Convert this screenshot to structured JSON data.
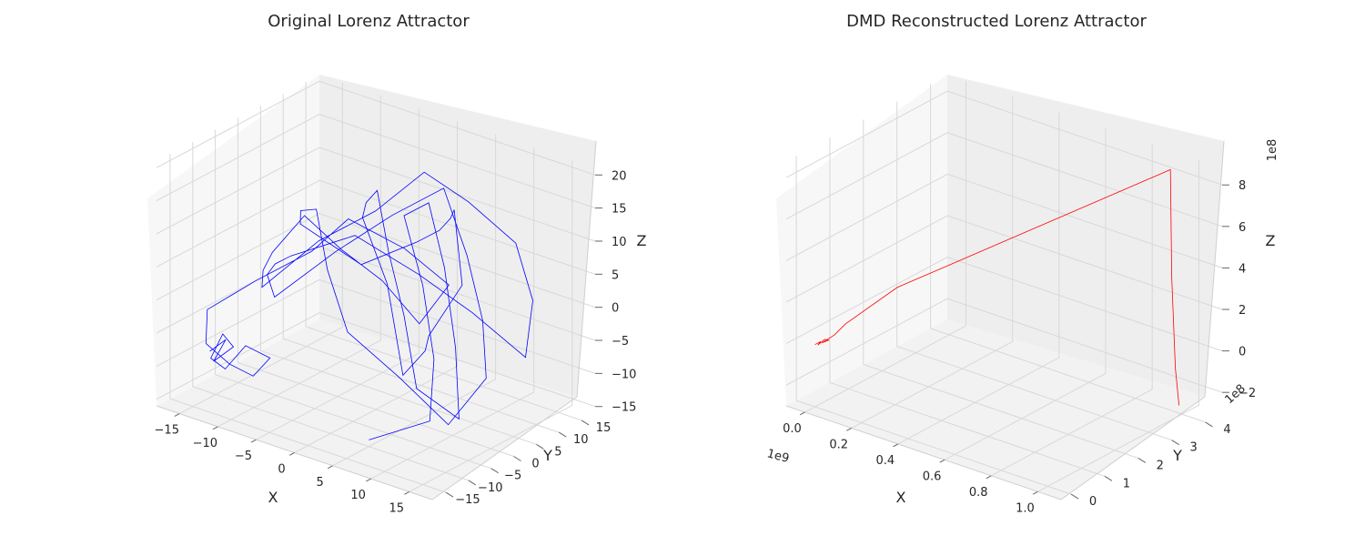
{
  "chart_data": [
    {
      "type": "line3d",
      "title": "Original Lorenz Attractor",
      "xlabel": "X",
      "ylabel": "Y",
      "zlabel": "Z",
      "xlim": [
        -18,
        18
      ],
      "ylim": [
        -18,
        18
      ],
      "zlim": [
        -16,
        21
      ],
      "xticks": [
        -15,
        -10,
        -5,
        0,
        5,
        10,
        15
      ],
      "yticks": [
        -15,
        -10,
        -5,
        0,
        5,
        10,
        15
      ],
      "zticks": [
        -15,
        -10,
        -5,
        0,
        5,
        10,
        15,
        20
      ],
      "x_offset_text": "",
      "y_offset_text": "",
      "z_offset_text": "",
      "color": "#0000ff",
      "series": [
        {
          "x": [
            -14.0,
            -12.5,
            -13.2,
            -11.8,
            -12.6,
            -13.4,
            -12.1,
            -10.5,
            -8.2,
            -9.8,
            -12.0,
            -14.5,
            -15.5,
            -11.0,
            -6.0,
            -3.0,
            2.0,
            6.0,
            4.5,
            2.0,
            -1.0,
            -4.0,
            -7.0,
            -10.0,
            -12.5,
            -8.0,
            -3.0,
            1.0,
            5.0,
            10.0,
            14.0,
            16.0,
            12.0,
            8.0,
            2.0,
            -4.0,
            -9.0,
            -13.0,
            -15.0,
            -10.0,
            -5.0,
            0.0,
            6.0,
            11.0,
            15.0,
            13.0,
            9.0,
            4.0,
            -1.0,
            -6.0,
            -11.0,
            -14.0,
            -9.0,
            -3.0,
            3.0,
            8.0,
            12.0,
            16.0,
            14.0,
            10.0,
            5.0,
            0.0,
            -5.0,
            -10.0,
            -6.0,
            -1.0,
            4.0,
            9.0,
            13.0,
            15.0,
            11.0,
            6.0,
            1.0,
            -4.0,
            2.0,
            7.0,
            10.0,
            5.0
          ],
          "y": [
            -13.0,
            -12.0,
            -13.5,
            -11.5,
            -12.5,
            -13.8,
            -12.8,
            -11.0,
            -9.5,
            -10.5,
            -12.0,
            -13.0,
            -11.0,
            -8.0,
            -4.0,
            -1.0,
            3.0,
            6.0,
            2.0,
            -2.0,
            -6.0,
            -9.0,
            -11.0,
            -8.0,
            -4.0,
            1.0,
            5.0,
            9.0,
            12.0,
            14.0,
            11.0,
            6.0,
            1.0,
            -4.0,
            -8.0,
            -12.0,
            -7.0,
            -2.0,
            3.0,
            8.0,
            12.0,
            15.0,
            10.0,
            5.0,
            -1.0,
            -6.0,
            -10.0,
            -13.0,
            -9.0,
            -3.0,
            2.0,
            7.0,
            12.0,
            14.0,
            9.0,
            3.0,
            -3.0,
            -8.0,
            -12.0,
            -6.0,
            0.0,
            6.0,
            11.0,
            14.0,
            8.0,
            2.0,
            -4.0,
            -9.0,
            -13.0,
            -7.0,
            -1.0,
            5.0,
            10.0,
            13.0,
            7.0,
            1.0,
            -5.0,
            -10.0
          ],
          "z": [
            -8.0,
            -6.0,
            -9.0,
            -7.0,
            -5.0,
            -8.5,
            -10.0,
            -6.5,
            -8.0,
            -11.0,
            -9.5,
            -7.0,
            -3.0,
            2.0,
            7.0,
            12.0,
            8.0,
            3.0,
            -2.0,
            5.0,
            10.0,
            15.0,
            9.0,
            4.0,
            -1.0,
            6.0,
            11.0,
            17.0,
            13.0,
            8.0,
            2.0,
            -4.0,
            3.0,
            9.0,
            14.0,
            10.0,
            5.0,
            0.0,
            -6.0,
            1.0,
            7.0,
            12.0,
            6.0,
            0.0,
            -5.0,
            -11.0,
            -4.0,
            2.0,
            8.0,
            13.0,
            9.0,
            4.0,
            -2.0,
            3.0,
            9.0,
            15.0,
            20.0,
            12.0,
            5.0,
            -1.0,
            -7.0,
            -13.0,
            -3.0,
            4.0,
            10.0,
            16.0,
            11.0,
            5.0,
            -3.0,
            -9.0,
            -2.0,
            6.0,
            12.0,
            7.0,
            1.0,
            -6.0,
            -12.0,
            -15.0
          ]
        }
      ]
    },
    {
      "type": "line3d",
      "title": "DMD Reconstructed Lorenz Attractor",
      "xlabel": "X",
      "ylabel": "Y",
      "zlabel": "Z",
      "xlim": [
        -0.08,
        1.1
      ],
      "ylim": [
        -0.3,
        4.5
      ],
      "zlim": [
        -3.0,
        8.8
      ],
      "xticks": [
        0.0,
        0.2,
        0.4,
        0.6,
        0.8,
        1.0
      ],
      "yticks": [
        0,
        1,
        2,
        3,
        4
      ],
      "zticks": [
        -2,
        0,
        2,
        4,
        6,
        8
      ],
      "x_offset_text": "1e9",
      "y_offset_text": "1e8",
      "z_offset_text": "1e8",
      "color": "#ff0000",
      "series": [
        {
          "x": [
            0.0,
            0.01,
            0.005,
            0.02,
            0.03,
            0.015,
            0.04,
            0.06,
            0.18,
            0.95,
            0.97,
            1.0,
            1.03
          ],
          "y": [
            0.0,
            0.1,
            0.05,
            0.15,
            0.2,
            0.1,
            0.3,
            0.5,
            1.2,
            4.0,
            3.9,
            3.8,
            3.7
          ],
          "z": [
            0.0,
            0.1,
            -0.05,
            0.2,
            0.15,
            0.05,
            0.35,
            0.8,
            2.4,
            8.6,
            3.6,
            -0.6,
            -2.2
          ]
        }
      ]
    }
  ]
}
